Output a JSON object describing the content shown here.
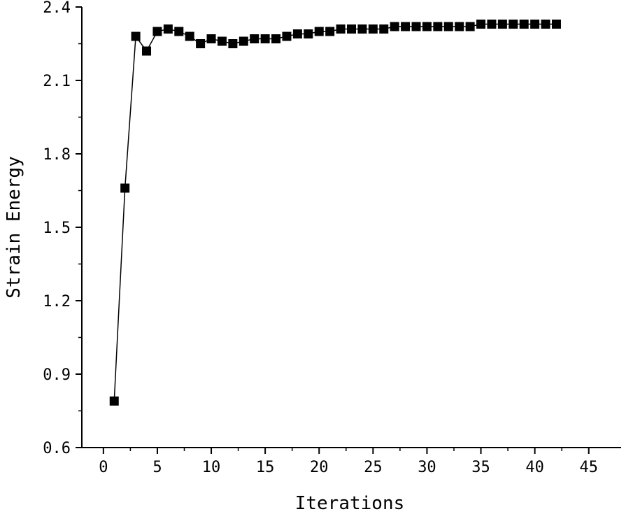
{
  "chart_data": {
    "type": "line",
    "xlabel": "Iterations",
    "ylabel": "Strain Energy",
    "xlim": [
      -2,
      48
    ],
    "ylim": [
      0.6,
      2.4
    ],
    "x_ticks": [
      0,
      5,
      10,
      15,
      20,
      25,
      30,
      35,
      40,
      45
    ],
    "x_tick_labels": [
      "0",
      "5",
      "10",
      "15",
      "20",
      "25",
      "30",
      "35",
      "40",
      "45"
    ],
    "y_ticks": [
      0.6,
      0.9,
      1.2,
      1.5,
      1.8,
      2.1,
      2.4
    ],
    "y_tick_labels": [
      "0.6",
      "0.9",
      "1.2",
      "1.5",
      "1.8",
      "2.1",
      "2.4"
    ],
    "grid": false,
    "marker": "square",
    "color": "#000000",
    "series": [
      {
        "x": [
          1,
          2,
          3,
          4,
          5,
          6,
          7,
          8,
          9,
          10,
          11,
          12,
          13,
          14,
          15,
          16,
          17,
          18,
          19,
          20,
          21,
          22,
          23,
          24,
          25,
          26,
          27,
          28,
          29,
          30,
          31,
          32,
          33,
          34,
          35,
          36,
          37,
          38,
          39,
          40,
          41,
          42
        ],
        "y": [
          0.79,
          1.66,
          2.28,
          2.22,
          2.3,
          2.31,
          2.3,
          2.28,
          2.25,
          2.27,
          2.26,
          2.25,
          2.26,
          2.27,
          2.27,
          2.27,
          2.28,
          2.29,
          2.29,
          2.3,
          2.3,
          2.31,
          2.31,
          2.31,
          2.31,
          2.31,
          2.32,
          2.32,
          2.32,
          2.32,
          2.32,
          2.32,
          2.32,
          2.32,
          2.33,
          2.33,
          2.33,
          2.33,
          2.33,
          2.33,
          2.33,
          2.33
        ]
      }
    ]
  }
}
